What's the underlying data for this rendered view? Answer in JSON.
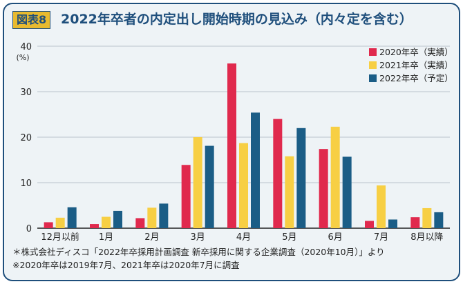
{
  "header": {
    "badge": "図表8",
    "title": "2022年卒者の内定出し開始時期の見込み（内々定を含む）"
  },
  "colors": {
    "frame": "#1f4f7c",
    "badge_bg": "#e8ba2f",
    "background": "#eef3f6"
  },
  "chart_data": {
    "type": "bar",
    "ylabel": "(%)",
    "ylim": [
      0,
      40
    ],
    "yticks": [
      0,
      10,
      20,
      30,
      40
    ],
    "grid": true,
    "legend_position": "top-right",
    "categories": [
      "12月以前",
      "1月",
      "2月",
      "3月",
      "4月",
      "5月",
      "6月",
      "7月",
      "8月以降"
    ],
    "series": [
      {
        "name": "2020年卒（実績）",
        "color": "#e0294d",
        "values": [
          1.3,
          0.9,
          2.2,
          13.9,
          36.2,
          24.0,
          17.4,
          1.6,
          2.4
        ]
      },
      {
        "name": "2021年卒（実績）",
        "color": "#f7cf44",
        "values": [
          2.3,
          2.5,
          4.5,
          20.0,
          18.7,
          15.8,
          22.3,
          9.4,
          4.4
        ]
      },
      {
        "name": "2022年卒（予定）",
        "color": "#1b5d86",
        "values": [
          4.6,
          3.8,
          5.4,
          18.1,
          25.4,
          22.0,
          15.7,
          1.9,
          3.5
        ]
      }
    ]
  },
  "notes": [
    "＊株式会社ディスコ「2022年卒採用計画調査 新卒採用に関する企業調査（2020年10月）」より",
    "※2020年卒は2019年7月、2021年卒は2020年7月に調査"
  ]
}
